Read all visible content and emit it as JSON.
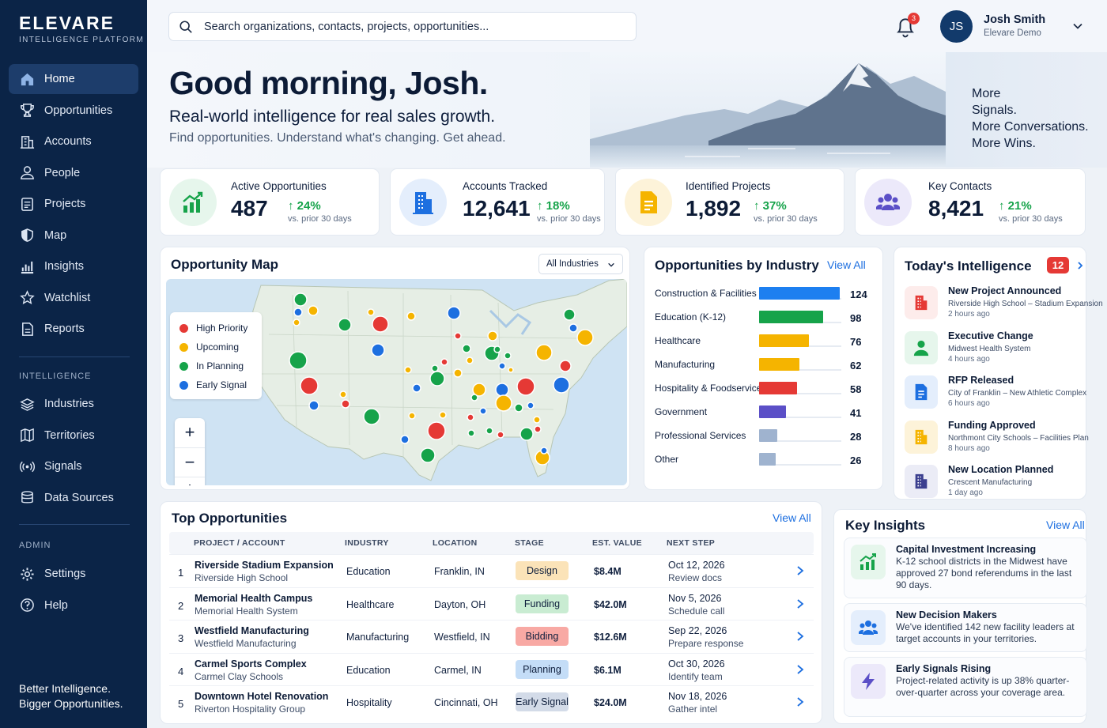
{
  "brand": {
    "name": "ELEVARE",
    "tagline": "INTELLIGENCE PLATFORM"
  },
  "nav": {
    "primary": [
      "Home",
      "Opportunities",
      "Accounts",
      "People",
      "Projects",
      "Map",
      "Insights",
      "Watchlist",
      "Reports"
    ],
    "intelligence_label": "INTELLIGENCE",
    "intelligence": [
      "Industries",
      "Territories",
      "Signals",
      "Data Sources"
    ],
    "admin_label": "ADMIN",
    "admin": [
      "Settings",
      "Help"
    ],
    "footer_line1": "Better Intelligence.",
    "footer_line2": "Bigger Opportunities."
  },
  "search": {
    "placeholder": "Search organizations, contacts, projects, opportunities..."
  },
  "notifications": {
    "count": "3"
  },
  "user": {
    "initials": "JS",
    "name": "Josh Smith",
    "org": "Elevare Demo"
  },
  "hero": {
    "greeting": "Good morning, Josh.",
    "headline": "Real-world intelligence for real sales growth.",
    "subline": "Find opportunities. Understand what's changing. Get ahead.",
    "slogan": [
      "More",
      "Signals.",
      "More Conversations.",
      "More Wins."
    ]
  },
  "stats": [
    {
      "label": "Active Opportunities",
      "value": "487",
      "change": "24%",
      "vs": "vs. prior 30 days",
      "color": "#16a34a",
      "bg": "#e6f6ec",
      "icon": "chart-growth-icon"
    },
    {
      "label": "Accounts Tracked",
      "value": "12,641",
      "change": "18%",
      "vs": "vs. prior 30 days",
      "color": "#1d6fe0",
      "bg": "#e4eefc",
      "icon": "building-icon"
    },
    {
      "label": "Identified Projects",
      "value": "1,892",
      "change": "37%",
      "vs": "vs. prior 30 days",
      "color": "#f5b400",
      "bg": "#fdf3d9",
      "icon": "document-icon"
    },
    {
      "label": "Key Contacts",
      "value": "8,421",
      "change": "21%",
      "vs": "vs. prior 30 days",
      "color": "#5b4fc7",
      "bg": "#ece9fa",
      "icon": "people-icon"
    }
  ],
  "map": {
    "title": "Opportunity Map",
    "filter": "All Industries",
    "legend": [
      {
        "label": "High Priority",
        "color": "#e53935"
      },
      {
        "label": "Upcoming",
        "color": "#f5b400"
      },
      {
        "label": "In Planning",
        "color": "#16a34a"
      },
      {
        "label": "Early Signal",
        "color": "#1d6fe0"
      }
    ]
  },
  "industry": {
    "title": "Opportunities by Industry",
    "view_all": "View All",
    "rows": [
      {
        "label": "Construction & Facilities",
        "value": 124,
        "color": "#1d7ff0"
      },
      {
        "label": "Education (K-12)",
        "value": 98,
        "color": "#16a34a"
      },
      {
        "label": "Healthcare",
        "value": 76,
        "color": "#f5b400"
      },
      {
        "label": "Manufacturing",
        "value": 62,
        "color": "#f5b400"
      },
      {
        "label": "Hospitality & Foodservice",
        "value": 58,
        "color": "#e53935"
      },
      {
        "label": "Government",
        "value": 41,
        "color": "#5b4fc7"
      },
      {
        "label": "Professional Services",
        "value": 28,
        "color": "#9fb3cf"
      },
      {
        "label": "Other",
        "value": 26,
        "color": "#9fb3cf"
      }
    ],
    "max": 124
  },
  "intel": {
    "title": "Today's Intelligence",
    "count": "12",
    "items": [
      {
        "title": "New Project Announced",
        "sub": "Riverside High School – Stadium Expansion",
        "ago": "2 hours ago",
        "color": "#e53935",
        "bg": "#fdeceb",
        "icon": "building-icon"
      },
      {
        "title": "Executive Change",
        "sub": "Midwest Health System",
        "ago": "4 hours ago",
        "color": "#16a34a",
        "bg": "#e6f6ec",
        "icon": "person-icon"
      },
      {
        "title": "RFP Released",
        "sub": "City of Franklin – New Athletic Complex",
        "ago": "6 hours ago",
        "color": "#1d6fe0",
        "bg": "#e4eefc",
        "icon": "document-icon"
      },
      {
        "title": "Funding Approved",
        "sub": "Northmont City Schools – Facilities Plan",
        "ago": "8 hours ago",
        "color": "#f5b400",
        "bg": "#fdf3d9",
        "icon": "building-icon"
      },
      {
        "title": "New Location Planned",
        "sub": "Crescent Manufacturing",
        "ago": "1 day ago",
        "color": "#3b3f8f",
        "bg": "#ebecf6",
        "icon": "building-icon"
      }
    ]
  },
  "top": {
    "title": "Top Opportunities",
    "view_all": "View All",
    "headers": [
      "PROJECT / ACCOUNT",
      "INDUSTRY",
      "LOCATION",
      "STAGE",
      "EST. VALUE",
      "NEXT STEP"
    ],
    "rows": [
      {
        "n": "1",
        "project": "Riverside Stadium Expansion",
        "account": "Riverside High School",
        "industry": "Education",
        "location": "Franklin, IN",
        "stage": "Design",
        "stage_bg": "#fbe3b8",
        "value": "$8.4M",
        "date": "Oct 12, 2026",
        "step": "Review docs"
      },
      {
        "n": "2",
        "project": "Memorial Health Campus",
        "account": "Memorial Health System",
        "industry": "Healthcare",
        "location": "Dayton, OH",
        "stage": "Funding",
        "stage_bg": "#c9ecd2",
        "value": "$42.0M",
        "date": "Nov 5, 2026",
        "step": "Schedule call"
      },
      {
        "n": "3",
        "project": "Westfield Manufacturing",
        "account": "Westfield Manufacturing",
        "industry": "Manufacturing",
        "location": "Westfield, IN",
        "stage": "Bidding",
        "stage_bg": "#f8a9a4",
        "value": "$12.6M",
        "date": "Sep 22, 2026",
        "step": "Prepare response"
      },
      {
        "n": "4",
        "project": "Carmel Sports Complex",
        "account": "Carmel Clay Schools",
        "industry": "Education",
        "location": "Carmel, IN",
        "stage": "Planning",
        "stage_bg": "#c4ddf7",
        "value": "$6.1M",
        "date": "Oct 30, 2026",
        "step": "Identify team"
      },
      {
        "n": "5",
        "project": "Downtown Hotel Renovation",
        "account": "Riverton Hospitality Group",
        "industry": "Hospitality",
        "location": "Cincinnati, OH",
        "stage": "Early Signal",
        "stage_bg": "#d3dbe8",
        "value": "$24.0M",
        "date": "Nov 18, 2026",
        "step": "Gather intel"
      }
    ]
  },
  "insights": {
    "title": "Key Insights",
    "view_all": "View All",
    "items": [
      {
        "title": "Capital Investment Increasing",
        "body": "K-12 school districts in the Midwest have approved 27 bond referendums in the last 90 days.",
        "color": "#16a34a",
        "bg": "#e6f6ec",
        "icon": "chart-growth-icon"
      },
      {
        "title": "New Decision Makers",
        "body": "We've identified 142 new facility leaders at target accounts in your territories.",
        "color": "#1d6fe0",
        "bg": "#e4eefc",
        "icon": "people-icon"
      },
      {
        "title": "Early Signals Rising",
        "body": "Project-related activity is up 38% quarter-over-quarter across your coverage area.",
        "color": "#5b4fc7",
        "bg": "#ece9fa",
        "icon": "lightning-icon"
      }
    ]
  }
}
